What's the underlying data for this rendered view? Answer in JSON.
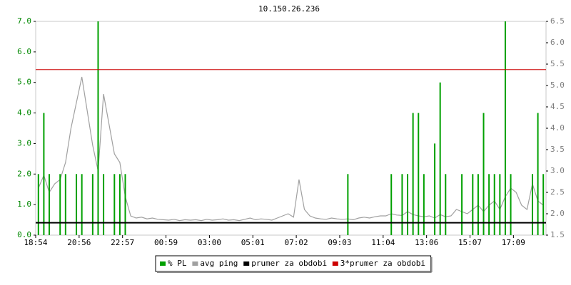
{
  "chart_data": {
    "type": "line",
    "title": "10.150.26.236",
    "categories": [
      "18:54",
      null,
      null,
      null,
      null,
      null,
      null,
      null,
      "20:56",
      null,
      null,
      null,
      null,
      null,
      null,
      null,
      "22:57",
      null,
      null,
      null,
      null,
      null,
      null,
      null,
      "00:59",
      null,
      null,
      null,
      null,
      null,
      null,
      null,
      "03:00",
      null,
      null,
      null,
      null,
      null,
      null,
      null,
      "05:01",
      null,
      null,
      null,
      null,
      null,
      null,
      null,
      "07:02",
      null,
      null,
      null,
      null,
      null,
      null,
      null,
      "09:03",
      null,
      null,
      null,
      null,
      null,
      null,
      null,
      "11:04",
      null,
      null,
      null,
      null,
      null,
      null,
      null,
      "13:06",
      null,
      null,
      null,
      null,
      null,
      null,
      null,
      "15:07",
      null,
      null,
      null,
      null,
      null,
      null,
      null,
      "17:09",
      null,
      null,
      null,
      null,
      null
    ],
    "series": [
      {
        "name": "% PL",
        "type": "bar",
        "color": "#00a000",
        "values": [
          2,
          4,
          2,
          0,
          2,
          2,
          0,
          2,
          2,
          0,
          2,
          7,
          2,
          0,
          2,
          2,
          2,
          0,
          0,
          0,
          0,
          0,
          0,
          0,
          0,
          0,
          0,
          0,
          0,
          0,
          0,
          0,
          0,
          0,
          0,
          0,
          0,
          0,
          0,
          0,
          0,
          0,
          0,
          0,
          0,
          0,
          0,
          0,
          0,
          0,
          0,
          0,
          0,
          0,
          0,
          0,
          0,
          2,
          0,
          0,
          0,
          0,
          0,
          0,
          0,
          2,
          0,
          2,
          2,
          4,
          4,
          2,
          0,
          3,
          5,
          2,
          0,
          0,
          2,
          0,
          2,
          2,
          4,
          2,
          2,
          2,
          7,
          2,
          0,
          0,
          0,
          2,
          4,
          2
        ]
      },
      {
        "name": "avg ping",
        "type": "line",
        "axis": "y2",
        "color": "#a0a0a0",
        "values": [
          2.6,
          2.9,
          2.5,
          2.7,
          2.8,
          3.2,
          4.0,
          4.6,
          5.2,
          4.4,
          3.6,
          3.0,
          4.8,
          4.1,
          3.4,
          3.2,
          2.4,
          1.95,
          1.9,
          1.92,
          1.88,
          1.9,
          1.87,
          1.86,
          1.85,
          1.87,
          1.84,
          1.86,
          1.85,
          1.86,
          1.84,
          1.87,
          1.85,
          1.86,
          1.88,
          1.85,
          1.86,
          1.84,
          1.87,
          1.9,
          1.86,
          1.88,
          1.87,
          1.85,
          1.9,
          1.95,
          2.0,
          1.92,
          2.8,
          2.1,
          1.95,
          1.9,
          1.88,
          1.87,
          1.9,
          1.88,
          1.87,
          1.88,
          1.86,
          1.9,
          1.92,
          1.9,
          1.93,
          1.95,
          1.95,
          2.0,
          1.97,
          1.96,
          2.05,
          1.98,
          1.95,
          1.93,
          1.95,
          1.9,
          1.98,
          1.93,
          1.95,
          2.1,
          2.05,
          2.0,
          2.1,
          2.2,
          2.05,
          2.2,
          2.3,
          2.1,
          2.4,
          2.6,
          2.5,
          2.2,
          2.1,
          2.7,
          2.3,
          2.2
        ]
      },
      {
        "name": "prumer za obdobi",
        "type": "hline",
        "axis": "y2",
        "color": "#000000",
        "value": 1.79
      },
      {
        "name": "3*prumer za obdobi",
        "type": "hline",
        "axis": "y2",
        "color": "#cc0000",
        "value": 5.37
      }
    ],
    "ylim": [
      0,
      7
    ],
    "yticks": [
      {
        "value": 0,
        "label": "0.0"
      },
      {
        "value": 1,
        "label": "1.0"
      },
      {
        "value": 2,
        "label": "2.0"
      },
      {
        "value": 3,
        "label": "3.0"
      },
      {
        "value": 4,
        "label": "4.0"
      },
      {
        "value": 5,
        "label": "5.0"
      },
      {
        "value": 6,
        "label": "6.0"
      },
      {
        "value": 7,
        "label": "7.0"
      }
    ],
    "y2lim": [
      1.5,
      6.5
    ],
    "y2ticks": [
      1.5,
      {
        "value": 2,
        "label": "2.0"
      },
      2.5,
      {
        "value": 3,
        "label": "3.0"
      },
      3.5,
      {
        "value": 4,
        "label": "4.0"
      },
      4.5,
      {
        "value": 5,
        "label": "5.0"
      },
      5.5,
      {
        "value": 6,
        "label": "6.0"
      },
      6.5
    ],
    "ytick_color": "#008800",
    "y2tick_color": "#808080"
  }
}
